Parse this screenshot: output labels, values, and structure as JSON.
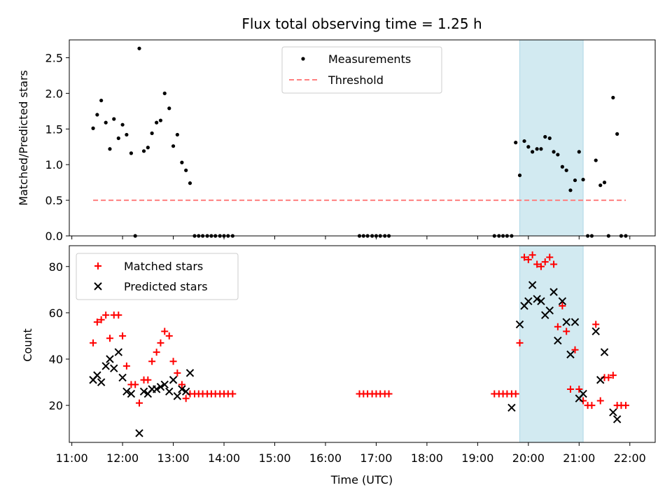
{
  "chart_data": {
    "title": "Flux total observing time = 1.25 h",
    "x_axis": {
      "label": "Time (UTC)",
      "range_hours": [
        10.95,
        22.5
      ],
      "tick_values_hours": [
        11,
        12,
        13,
        14,
        15,
        16,
        17,
        18,
        19,
        20,
        21,
        22
      ],
      "tick_labels": [
        "11:00",
        "12:00",
        "13:00",
        "14:00",
        "15:00",
        "16:00",
        "17:00",
        "18:00",
        "19:00",
        "20:00",
        "21:00",
        "22:00"
      ]
    },
    "highlight_band_hours": [
      19.83,
      21.08
    ],
    "highlight_color": "#add8e6",
    "panels": [
      {
        "type": "scatter",
        "ylabel": "Matched/Predicted stars",
        "ylim": [
          0,
          2.75
        ],
        "yticks": [
          0.0,
          0.5,
          1.0,
          1.5,
          2.0,
          2.5
        ],
        "ytick_labels": [
          "0.0",
          "0.5",
          "1.0",
          "1.5",
          "2.0",
          "2.5"
        ],
        "legend": {
          "location": "upper center",
          "entries": [
            "Measurements",
            "Threshold"
          ]
        },
        "series": [
          {
            "name": "Measurements",
            "marker": "dot",
            "color": "#000000",
            "x": [
              11.42,
              11.5,
              11.58,
              11.67,
              11.75,
              11.83,
              11.92,
              12.0,
              12.08,
              12.17,
              12.25,
              12.33,
              12.42,
              12.5,
              12.58,
              12.67,
              12.75,
              12.83,
              12.92,
              13.0,
              13.08,
              13.17,
              13.25,
              13.33,
              13.42,
              13.5,
              13.58,
              13.67,
              13.75,
              13.83,
              13.92,
              14.0,
              14.08,
              14.17,
              16.67,
              16.75,
              16.83,
              16.92,
              17.0,
              17.08,
              17.17,
              17.25,
              19.33,
              19.42,
              19.5,
              19.58,
              19.67,
              19.75,
              19.83,
              19.92,
              20.0,
              20.08,
              20.17,
              20.25,
              20.33,
              20.42,
              20.5,
              20.58,
              20.67,
              20.75,
              20.83,
              20.92,
              21.0,
              21.08,
              21.17,
              21.25,
              21.33,
              21.42,
              21.5,
              21.58,
              21.67,
              21.75,
              21.83,
              21.92
            ],
            "y": [
              1.51,
              1.7,
              1.9,
              1.59,
              1.22,
              1.64,
              1.37,
              1.56,
              1.42,
              1.16,
              0.0,
              2.63,
              1.19,
              1.24,
              1.44,
              1.59,
              1.62,
              2.0,
              1.79,
              1.26,
              1.42,
              1.03,
              0.92,
              0.74,
              0.0,
              0.0,
              0.0,
              0.0,
              0.0,
              0.0,
              0.0,
              0.0,
              0.0,
              0.0,
              0.0,
              0.0,
              0.0,
              0.0,
              0.0,
              0.0,
              0.0,
              0.0,
              0.0,
              0.0,
              0.0,
              0.0,
              0.0,
              1.31,
              0.85,
              1.33,
              1.25,
              1.18,
              1.22,
              1.22,
              1.39,
              1.37,
              1.18,
              1.14,
              0.97,
              0.92,
              0.64,
              0.78,
              1.18,
              0.79,
              0.0,
              0.0,
              1.06,
              0.71,
              0.75,
              0.0,
              1.94,
              1.43,
              0.0,
              0.0
            ]
          },
          {
            "name": "Threshold",
            "line_style": "dashed",
            "color": "#ff7f7f",
            "x": [
              11.42,
              21.92
            ],
            "y": [
              0.5,
              0.5
            ]
          }
        ]
      },
      {
        "type": "scatter",
        "ylabel": "Count",
        "ylim": [
          4,
          89
        ],
        "yticks": [
          20,
          40,
          60,
          80
        ],
        "ytick_labels": [
          "20",
          "40",
          "60",
          "80"
        ],
        "legend": {
          "location": "upper left",
          "entries": [
            "Matched stars",
            "Predicted stars"
          ]
        },
        "series": [
          {
            "name": "Matched stars",
            "marker": "plus",
            "color": "#ff0000",
            "x": [
              11.42,
              11.5,
              11.58,
              11.67,
              11.75,
              11.83,
              11.92,
              12.0,
              12.08,
              12.17,
              12.25,
              12.33,
              12.42,
              12.5,
              12.58,
              12.67,
              12.75,
              12.83,
              12.92,
              13.0,
              13.08,
              13.17,
              13.25,
              13.33,
              13.42,
              13.5,
              13.58,
              13.67,
              13.75,
              13.83,
              13.92,
              14.0,
              14.08,
              14.17,
              16.67,
              16.75,
              16.83,
              16.92,
              17.0,
              17.08,
              17.17,
              17.25,
              19.33,
              19.42,
              19.5,
              19.58,
              19.67,
              19.75,
              19.83,
              19.92,
              20.0,
              20.08,
              20.17,
              20.25,
              20.33,
              20.42,
              20.5,
              20.58,
              20.67,
              20.75,
              20.83,
              20.92,
              21.0,
              21.08,
              21.17,
              21.25,
              21.33,
              21.42,
              21.5,
              21.58,
              21.67,
              21.75,
              21.83,
              21.92
            ],
            "y": [
              47,
              56,
              57,
              59,
              49,
              59,
              59,
              50,
              37,
              29,
              29,
              21,
              31,
              31,
              39,
              43,
              47,
              52,
              50,
              39,
              34,
              29,
              23,
              25,
              25,
              25,
              25,
              25,
              25,
              25,
              25,
              25,
              25,
              25,
              25,
              25,
              25,
              25,
              25,
              25,
              25,
              25,
              25,
              25,
              25,
              25,
              25,
              25,
              47,
              84,
              83,
              85,
              81,
              80,
              82,
              84,
              81,
              54,
              63,
              52,
              27,
              44,
              27,
              22,
              20,
              20,
              55,
              22,
              32,
              32,
              33,
              20,
              20,
              20
            ]
          },
          {
            "name": "Predicted stars",
            "marker": "x",
            "color": "#000000",
            "x": [
              11.42,
              11.5,
              11.58,
              11.67,
              11.75,
              11.83,
              11.92,
              12.0,
              12.08,
              12.17,
              12.33,
              12.42,
              12.5,
              12.58,
              12.67,
              12.75,
              12.83,
              12.92,
              13.0,
              13.08,
              13.17,
              13.25,
              13.33,
              19.67,
              19.83,
              19.92,
              20.0,
              20.08,
              20.17,
              20.25,
              20.33,
              20.42,
              20.5,
              20.58,
              20.67,
              20.75,
              20.83,
              20.92,
              21.0,
              21.08,
              21.33,
              21.42,
              21.5,
              21.67,
              21.75
            ],
            "y": [
              31,
              33,
              30,
              37,
              40,
              36,
              43,
              32,
              26,
              25,
              8,
              26,
              25,
              27,
              27,
              28,
              29,
              26,
              31,
              24,
              27,
              26,
              34,
              19,
              55,
              63,
              65,
              72,
              66,
              65,
              59,
              61,
              69,
              48,
              65,
              56,
              42,
              56,
              23,
              25,
              52,
              31,
              43,
              17,
              14
            ]
          }
        ]
      }
    ]
  }
}
